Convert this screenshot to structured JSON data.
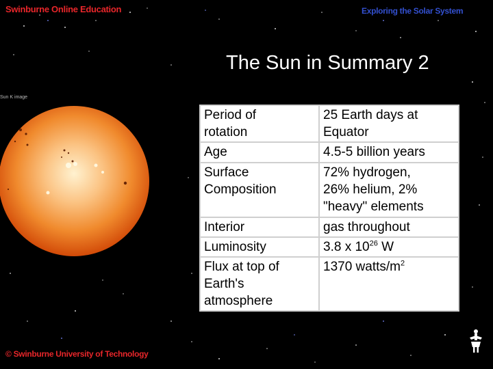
{
  "header": {
    "left_text": "Swinburne Online Education",
    "right_text": "Exploring the Solar System"
  },
  "title": "The Sun in Summary 2",
  "image": {
    "label": "Sun K image"
  },
  "table": {
    "rows": [
      {
        "property": "Period of\nrotation",
        "value": "25 Earth days at\nEquator"
      },
      {
        "property": "Age",
        "value": "4.5-5 billion years"
      },
      {
        "property": "Surface\nComposition",
        "value": "72% hydrogen,\n26% helium, 2%\n\"heavy\" elements"
      },
      {
        "property": "Interior",
        "value": "gas throughout"
      },
      {
        "property": "Luminosity",
        "value_prefix": "3.8 x 10",
        "value_exp": "26",
        "value_suffix": " W"
      },
      {
        "property": "Flux at top of\nEarth's\natmosphere",
        "value_prefix": "1370 watts/m",
        "value_exp": "2",
        "value_suffix": ""
      }
    ]
  },
  "footer": {
    "text": "© Swinburne University of Technology"
  },
  "colors": {
    "header_red": "#e8262a",
    "header_blue": "#3350d0",
    "sun_center": "#fff2d0",
    "sun_edge": "#d24a08"
  }
}
